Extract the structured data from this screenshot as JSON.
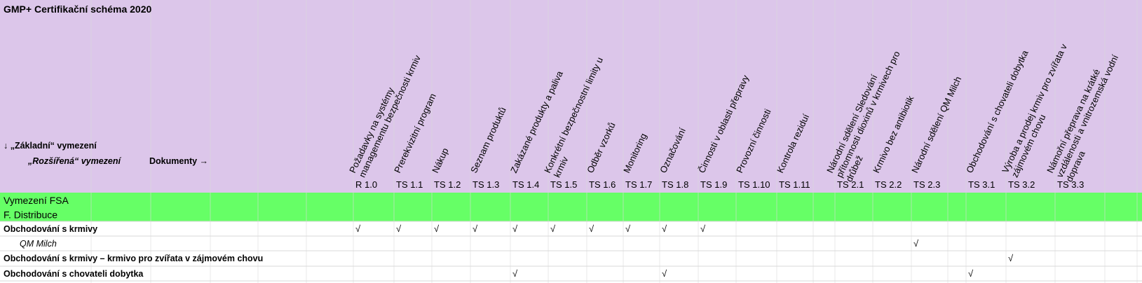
{
  "header": {
    "title": "GMP+ Certifikační schéma 2020",
    "basic": "↓ „Základní“ vymezení",
    "extended": "„Rozšířená“ vymezení",
    "documents": "Dokumenty →"
  },
  "columns": [
    {
      "code": "R 1.0",
      "heading": [
        "Požadavky na systémy",
        "managementu bezpečnosti krmiv"
      ]
    },
    {
      "code": "TS 1.1",
      "heading": [
        "Prerekvizitní program"
      ]
    },
    {
      "code": "TS 1.2",
      "heading": [
        "Nákup"
      ]
    },
    {
      "code": "TS 1.3",
      "heading": [
        "Seznam produktů"
      ]
    },
    {
      "code": "TS 1.4",
      "heading": [
        "Zakázané produkty a paliva"
      ]
    },
    {
      "code": "TS 1.5",
      "heading": [
        "Konkrétní bezpečnostní limity u",
        "krmiv"
      ]
    },
    {
      "code": "TS 1.6",
      "heading": [
        "Odběr vzorků"
      ]
    },
    {
      "code": "TS 1.7",
      "heading": [
        "Monitoring"
      ]
    },
    {
      "code": "TS 1.8",
      "heading": [
        "Označování"
      ]
    },
    {
      "code": "TS 1.9",
      "heading": [
        "Činnosti v oblasti přepravy"
      ]
    },
    {
      "code": "TS 1.10",
      "heading": [
        "Provozní činnosti"
      ]
    },
    {
      "code": "TS 1.11",
      "heading": [
        "Kontrola reziduí"
      ]
    },
    {
      "code": "TS 2.1",
      "heading": [
        "Národní sdělení Sledování",
        "přítomnosti dioxinů v krmivech pro",
        "drůbež"
      ]
    },
    {
      "code": "TS 2.2",
      "heading": [
        "Krmivo bez antibiotik"
      ]
    },
    {
      "code": "TS 2.3",
      "heading": [
        "Národní sdělení QM Milch"
      ]
    },
    {
      "code": "TS 3.1",
      "heading": [
        "Obchodování s chovateli dobytka"
      ]
    },
    {
      "code": "TS 3.2",
      "heading": [
        "Výroba a prodej krmiv pro zvířata v",
        "zájmovém chovu"
      ]
    },
    {
      "code": "TS 3.3",
      "heading": [
        "Námořní přeprava na krátké",
        "vzdálenosti a vnitrozemská vodní",
        "doprava"
      ]
    }
  ],
  "sections": [
    "Vymezení FSA",
    "F. Distribuce"
  ],
  "rows": [
    {
      "label": "Obchodování s krmivy",
      "cells": [
        "√",
        "√",
        "√",
        "√",
        "√",
        "√",
        "√",
        "√",
        "√",
        "√",
        null,
        null,
        null,
        null,
        null,
        null,
        null,
        null
      ]
    },
    {
      "label": "QM Milch",
      "cells": [
        null,
        null,
        null,
        null,
        null,
        null,
        null,
        null,
        null,
        null,
        null,
        null,
        null,
        null,
        "√",
        null,
        null,
        null
      ]
    },
    {
      "label": "Obchodování s krmivy – krmivo pro zvířata v zájmovém chovu",
      "cells": [
        null,
        null,
        null,
        null,
        null,
        null,
        null,
        null,
        null,
        null,
        null,
        null,
        null,
        null,
        null,
        null,
        "√",
        null
      ]
    },
    {
      "label": "Obchodování s chovateli dobytka",
      "cells": [
        null,
        null,
        null,
        null,
        "√",
        null,
        null,
        null,
        "√",
        null,
        null,
        null,
        null,
        null,
        null,
        "√",
        null,
        null
      ]
    }
  ]
}
